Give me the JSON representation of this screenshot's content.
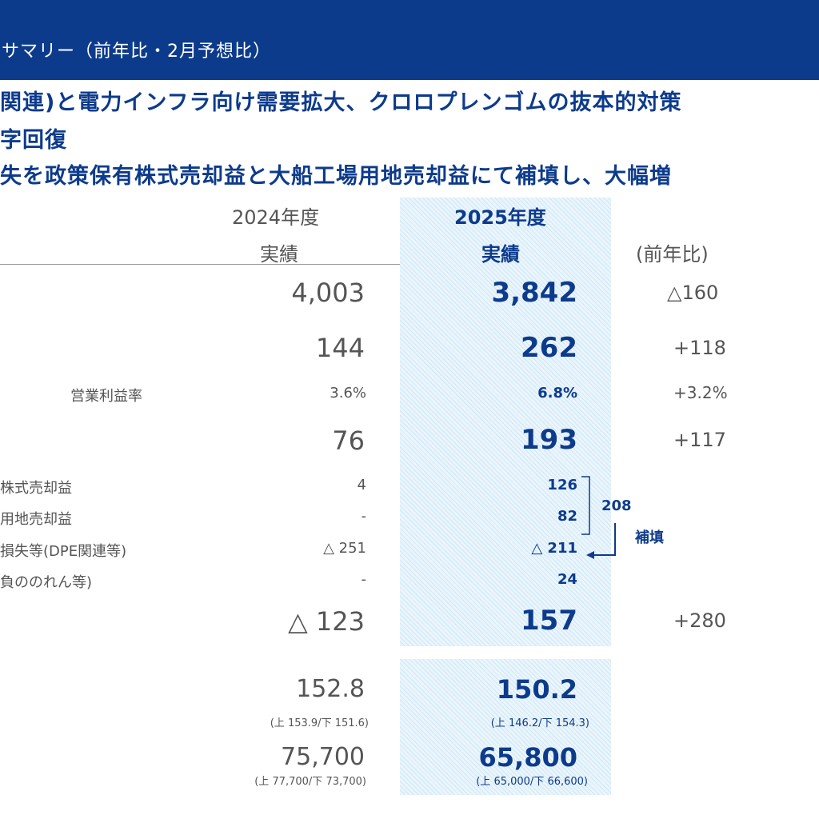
{
  "header": {
    "title": "サマリー（前年比・2月予想比）"
  },
  "headlines": [
    "関連)と電力インフラ向け需要拡大、クロロプレンゴムの抜本的対策",
    "字回復",
    "失を政策保有株式売却益と大船工場用地売却益にて補填し、大幅増"
  ],
  "columns": {
    "prev_year": "2024年度",
    "prev_sub": "実績",
    "cur_year": "2025年度",
    "cur_sub": "実績",
    "yoy": "(前年比)"
  },
  "rows": {
    "sales": {
      "prev": "4,003",
      "cur": "3,842",
      "yoy": "△160"
    },
    "op_income": {
      "prev": "144",
      "cur": "262",
      "yoy": "+118"
    },
    "op_margin": {
      "label": "営業利益率",
      "prev": "3.6%",
      "cur": "6.8%",
      "yoy": "+3.2%"
    },
    "ordinary": {
      "prev": "76",
      "cur": "193",
      "yoy": "+117"
    },
    "stock_gain": {
      "label": "株式売却益",
      "prev": "4",
      "cur": "126"
    },
    "land_gain": {
      "label": "用地売却益",
      "prev": "-",
      "cur": "82"
    },
    "loss": {
      "label": "損失等(DPE関連等)",
      "prev": "△ 251",
      "cur": "△ 211"
    },
    "goodwill": {
      "label": "負ののれん等)",
      "prev": "-",
      "cur": "24"
    },
    "net": {
      "prev": "△ 123",
      "cur": "157",
      "yoy": "+280"
    },
    "fx": {
      "prev": "152.8",
      "cur": "150.2",
      "prev_note": "(上 153.9/下 151.6)",
      "cur_note": "(上 146.2/下 154.3)"
    },
    "price": {
      "prev": "75,700",
      "cur": "65,800",
      "prev_note": "(上 77,700/下 73,700)",
      "cur_note": "(上 65,000/下 66,600)"
    }
  },
  "annotation": {
    "sum": "208",
    "label": "補填"
  },
  "colors": {
    "brand": "#0d3b8c",
    "highlight": "#eaf5fc"
  }
}
